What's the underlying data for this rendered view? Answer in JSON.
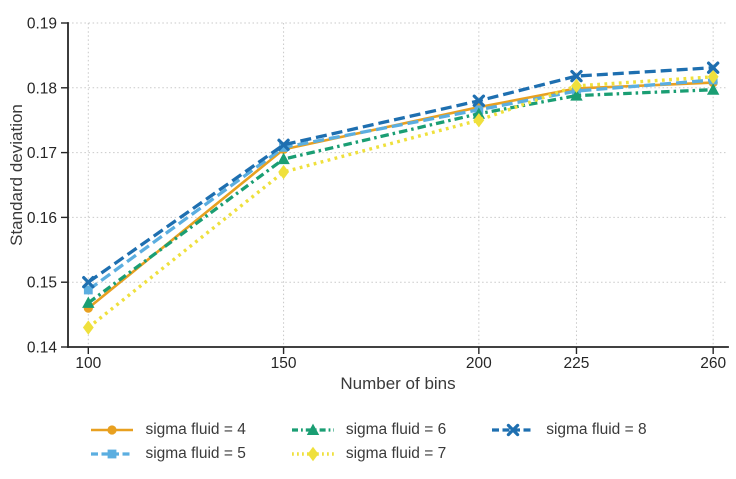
{
  "chart_data": {
    "type": "line",
    "title": "",
    "xlabel": "Number of bins",
    "ylabel": "Standard deviation",
    "x": [
      100,
      150,
      200,
      225,
      260
    ],
    "series": [
      {
        "name": "sigma fluid = 4",
        "color": "#E8A020",
        "marker": "circle",
        "dash": "solid",
        "values": [
          0.146,
          0.1705,
          0.177,
          0.1799,
          0.1808
        ]
      },
      {
        "name": "sigma fluid = 5",
        "color": "#5BAEE0",
        "marker": "square",
        "dash": "dashed",
        "values": [
          0.1488,
          0.1708,
          0.1766,
          0.1795,
          0.1812
        ]
      },
      {
        "name": "sigma fluid = 6",
        "color": "#1A9E73",
        "marker": "triangle",
        "dash": "dashdot",
        "values": [
          0.1468,
          0.169,
          0.176,
          0.1788,
          0.1797
        ]
      },
      {
        "name": "sigma fluid = 7",
        "color": "#EFE03C",
        "marker": "diamond",
        "dash": "dotted",
        "values": [
          0.143,
          0.167,
          0.175,
          0.1803,
          0.1817
        ]
      },
      {
        "name": "sigma fluid = 8",
        "color": "#1E6FB0",
        "marker": "x",
        "dash": "dashed",
        "values": [
          0.15,
          0.1712,
          0.178,
          0.1818,
          0.1831
        ]
      }
    ],
    "xticks": [
      100,
      150,
      200,
      225,
      260
    ],
    "yticks": [
      0.14,
      0.15,
      0.16,
      0.17,
      0.18,
      0.19
    ],
    "xlim": [
      94.8,
      263.8
    ],
    "ylim": [
      0.14,
      0.19
    ],
    "grid": true,
    "legend_position": "bottom",
    "legend_columns": 3,
    "axis_color": "#262626",
    "grid_color": "#C9C9C9",
    "text_color": "#3A3A3A"
  }
}
